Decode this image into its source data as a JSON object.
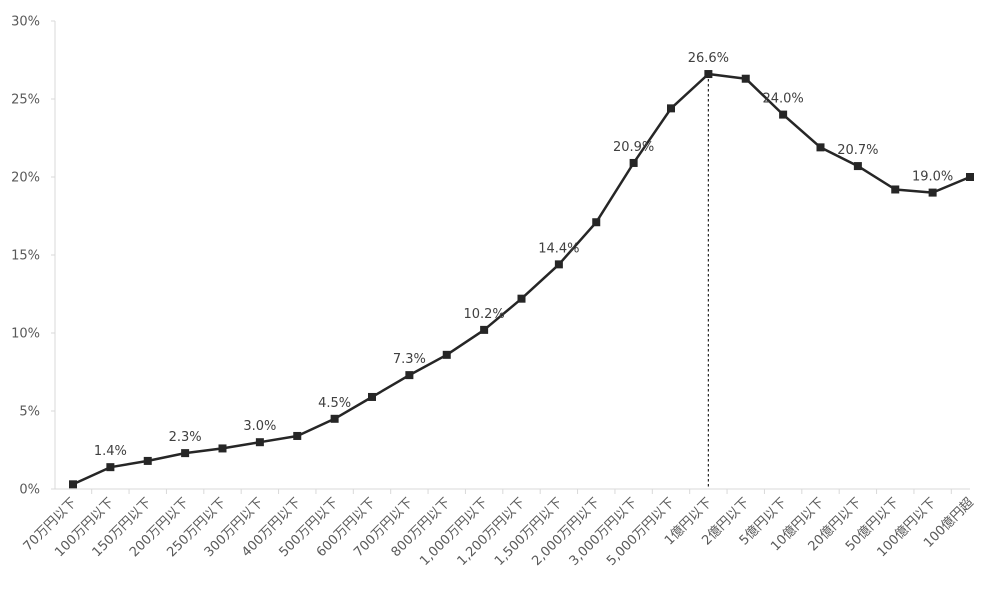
{
  "chart_data": {
    "type": "line",
    "title": "",
    "xlabel": "",
    "ylabel": "",
    "categories": [
      "70万円以下",
      "100万円以下",
      "150万円以下",
      "200万円以下",
      "250万円以下",
      "300万円以下",
      "400万円以下",
      "500万円以下",
      "600万円以下",
      "700万円以下",
      "800万円以下",
      "1,000万円以下",
      "1,200万円以下",
      "1,500万円以下",
      "2,000万円以下",
      "3,000万円以下",
      "5,000万円以下",
      "1億円以下",
      "2億円以下",
      "5億円以下",
      "10億円以下",
      "20億円以下",
      "50億円以下",
      "100億円以下",
      "100億円超"
    ],
    "series": [
      {
        "name": "",
        "color": "#262626",
        "values": [
          0.3,
          1.4,
          1.8,
          2.3,
          2.6,
          3.0,
          3.4,
          4.5,
          5.9,
          7.3,
          8.6,
          10.2,
          12.2,
          14.4,
          17.1,
          20.9,
          24.4,
          26.6,
          26.3,
          24.0,
          21.9,
          20.7,
          19.2,
          19.0,
          20.0
        ]
      }
    ],
    "data_labels": [
      {
        "index": 1,
        "text": "1.4%"
      },
      {
        "index": 3,
        "text": "2.3%"
      },
      {
        "index": 5,
        "text": "3.0%"
      },
      {
        "index": 7,
        "text": "4.5%"
      },
      {
        "index": 9,
        "text": "7.3%"
      },
      {
        "index": 11,
        "text": "10.2%"
      },
      {
        "index": 13,
        "text": "14.4%"
      },
      {
        "index": 15,
        "text": "20.9%"
      },
      {
        "index": 17,
        "text": "26.6%"
      },
      {
        "index": 19,
        "text": "24.0%"
      },
      {
        "index": 21,
        "text": "20.7%"
      },
      {
        "index": 23,
        "text": "19.0%"
      }
    ],
    "y_ticks": [
      "0%",
      "5%",
      "10%",
      "15%",
      "20%",
      "25%",
      "30%"
    ],
    "ylim": [
      0,
      30
    ],
    "y_tick_step": 5,
    "grid": false,
    "legend": "none",
    "peak_marker": {
      "index": 17,
      "style": "dotted vertical line"
    }
  }
}
